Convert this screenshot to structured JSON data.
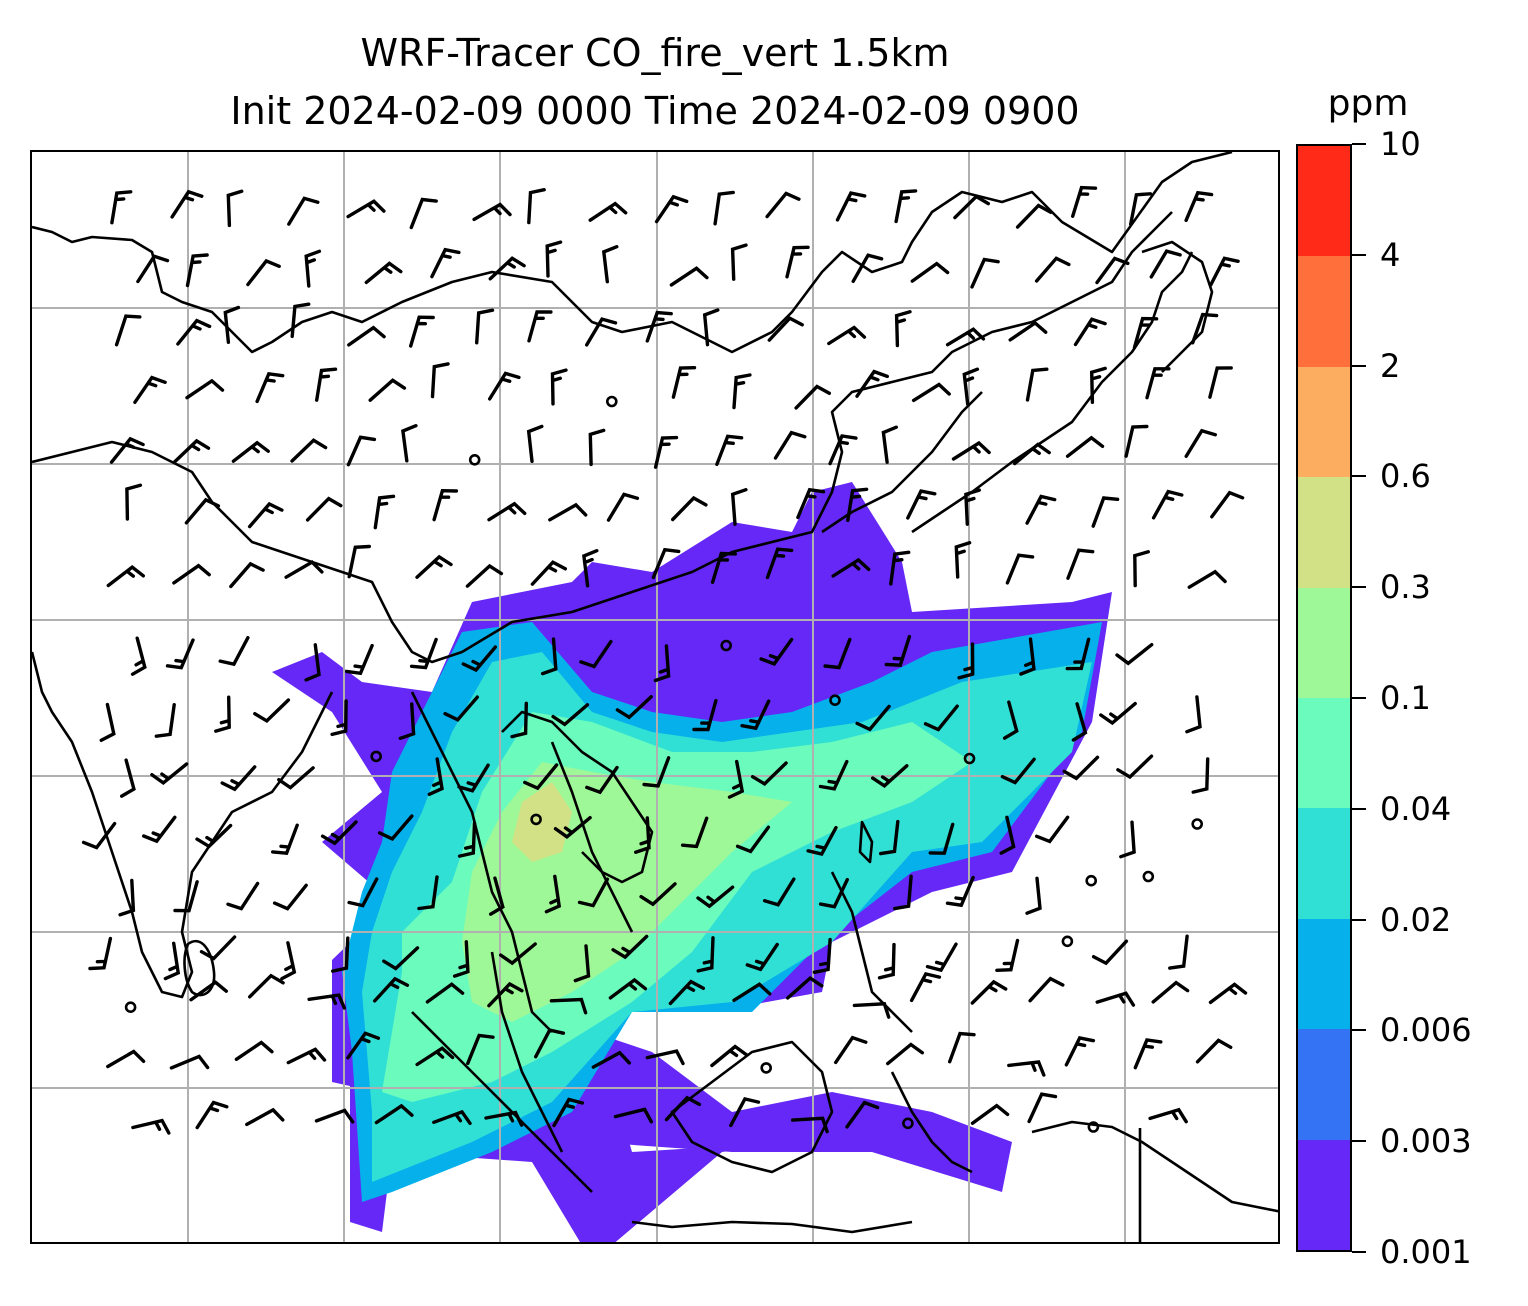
{
  "title": {
    "line1": "WRF-Tracer CO_fire_vert 1.5km",
    "line2": "Init 2024-02-09 0000 Time 2024-02-09 0900"
  },
  "colorbar": {
    "unit": "ppm",
    "levels": [
      "0.001",
      "0.003",
      "0.006",
      "0.02",
      "0.04",
      "0.1",
      "0.3",
      "0.6",
      "2",
      "4",
      "10"
    ],
    "colors": [
      "#6528f6",
      "#3474f4",
      "#06b0eb",
      "#31e0d5",
      "#6bfcbd",
      "#9ff897",
      "#d2e186",
      "#fdad60",
      "#fe6f3b",
      "#ff2a18"
    ]
  },
  "map": {
    "field": "CO_fire_vert",
    "height": "1.5km",
    "coastline_color": "#000000",
    "gridline_color": "#b0b0b0",
    "wind_barb_color": "#000000",
    "features": [
      "coastlines",
      "gridlines",
      "wind barbs",
      "tracer concentration filled contours"
    ]
  }
}
